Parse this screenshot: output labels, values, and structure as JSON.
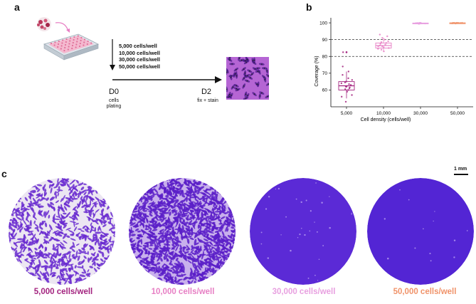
{
  "panel_a": {
    "letter": "a",
    "densities": [
      "5,000 cells/well",
      "10,000 cells/well",
      "30,000 cells/well",
      "50,000 cells/well"
    ],
    "d0_label": "D0",
    "d0_sub": [
      "cells",
      "plating"
    ],
    "d2_label": "D2",
    "d2_sub": "fix + stain"
  },
  "panel_b": {
    "letter": "b"
  },
  "panel_c": {
    "letter": "c",
    "scale_bar": "1 mm",
    "wells": [
      {
        "label": "5,000 cells/well",
        "color": "#a3237f"
      },
      {
        "label": "10,000 cells/well",
        "color": "#e77fc4"
      },
      {
        "label": "30,000 cells/well",
        "color": "#e8a0e0"
      },
      {
        "label": "50,000 cells/well",
        "color": "#f0936a"
      }
    ]
  },
  "colors": {
    "stain_dark": "#5a1fc0",
    "stain_light": "#c8b8e6",
    "tissue": "#b565d4"
  },
  "chart_data": {
    "type": "box",
    "xlabel": "Cell density (cells/well)",
    "ylabel": "Coverage (%)",
    "categories": [
      "5,000",
      "10,000",
      "30,000",
      "50,000"
    ],
    "ylim": [
      50,
      103
    ],
    "yticks": [
      60,
      70,
      80,
      90,
      100
    ],
    "reference_lines": [
      80,
      90
    ],
    "colors": [
      "#a3237f",
      "#e77fc4",
      "#e8a0e0",
      "#f0936a"
    ],
    "boxes": [
      {
        "category": "5,000",
        "q1": 60,
        "median": 62.5,
        "q3": 65,
        "whisker_low": 55,
        "whisker_high": 71,
        "outliers": [
          82.5
        ]
      },
      {
        "category": "10,000",
        "q1": 85,
        "median": 86.5,
        "q3": 88,
        "whisker_low": 83,
        "whisker_high": 91,
        "outliers": []
      },
      {
        "category": "30,000",
        "q1": 99.6,
        "median": 99.8,
        "q3": 99.9,
        "whisker_low": 99.3,
        "whisker_high": 100,
        "outliers": []
      },
      {
        "category": "50,000",
        "q1": 99.8,
        "median": 99.9,
        "q3": 100,
        "whisker_low": 99.6,
        "whisker_high": 100,
        "outliers": []
      }
    ],
    "points": [
      [
        53,
        56,
        57,
        59,
        60,
        60.5,
        61,
        61.5,
        62,
        62,
        63,
        63.5,
        64,
        64.5,
        65,
        66,
        67,
        69,
        71,
        74,
        82.5
      ],
      [
        83,
        84,
        84.5,
        85,
        85.5,
        86,
        86,
        86.5,
        87,
        87.5,
        88,
        88.5,
        89,
        90,
        91,
        92,
        93
      ],
      [
        99.4,
        99.5,
        99.6,
        99.7,
        99.8,
        99.8,
        99.9,
        99.9,
        100,
        100
      ],
      [
        99.6,
        99.7,
        99.8,
        99.9,
        99.9,
        100,
        100,
        100,
        100,
        100
      ]
    ]
  }
}
